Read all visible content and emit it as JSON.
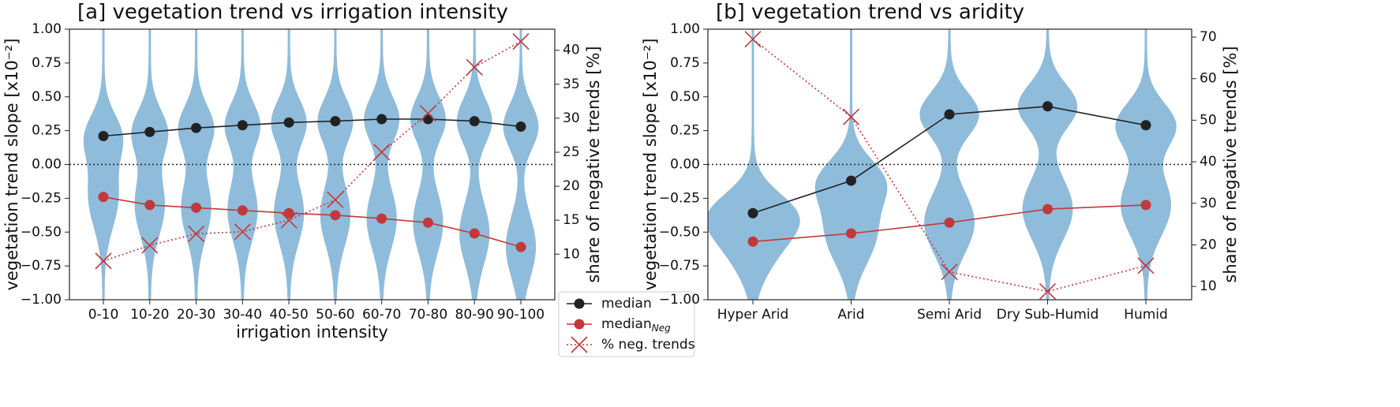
{
  "chart_data": [
    {
      "type": "violin",
      "title": "[a] vegetation trend vs irrigation intensity",
      "xlabel": "irrigation intensity",
      "ylabel": "vegetation trend slope [x10⁻²]",
      "y2label": "share of negative trends [%]",
      "categories": [
        "0-10",
        "10-20",
        "20-30",
        "30-40",
        "40-50",
        "50-60",
        "60-70",
        "70-80",
        "80-90",
        "90-100"
      ],
      "violin_color": "#8fbcdb",
      "ylim": [
        -1,
        1
      ],
      "yticks": [
        {
          "value": -1,
          "label": "−1.00"
        },
        {
          "value": -0.75,
          "label": "−0.75"
        },
        {
          "value": -0.5,
          "label": "−0.50"
        },
        {
          "value": -0.25,
          "label": "−0.25"
        },
        {
          "value": 0,
          "label": "0.00"
        },
        {
          "value": 0.25,
          "label": "0.25"
        },
        {
          "value": 0.5,
          "label": "0.50"
        },
        {
          "value": 0.75,
          "label": "0.75"
        },
        {
          "value": 1,
          "label": "1.00"
        }
      ],
      "y2lim": [
        3.3,
        43.1
      ],
      "y2ticks": [
        10,
        15,
        20,
        25,
        30,
        35,
        40
      ],
      "legend": "outside-lower-right",
      "series": [
        {
          "name": "median",
          "color": "#222222",
          "marker": "circle",
          "line": "solid",
          "values": [
            0.21,
            0.24,
            0.27,
            0.29,
            0.31,
            0.32,
            0.335,
            0.335,
            0.32,
            0.28
          ]
        },
        {
          "name": "median",
          "name_subscript": "Neg",
          "color": "#c0393b",
          "marker": "circle",
          "line": "solid",
          "values": [
            -0.24,
            -0.3,
            -0.32,
            -0.34,
            -0.36,
            -0.375,
            -0.4,
            -0.43,
            -0.51,
            -0.61
          ]
        },
        {
          "name": "% neg. trends",
          "color": "#c0393b",
          "marker": "x",
          "line": "dotted",
          "axis": "y2",
          "values": [
            9,
            11.3,
            13,
            13.3,
            15,
            18,
            25,
            30.7,
            37.5,
            41.3
          ]
        }
      ]
    },
    {
      "type": "violin",
      "title": "[b] vegetation trend vs aridity",
      "ylabel": "vegetation trend slope [x10⁻²]",
      "y2label": "share of negative trends [%]",
      "categories": [
        "Hyper Arid",
        "Arid",
        "Semi Arid",
        "Dry Sub-Humid",
        "Humid"
      ],
      "violin_color": "#8fbcdb",
      "ylim": [
        -1,
        1
      ],
      "yticks": [
        {
          "value": -1,
          "label": "−1.00"
        },
        {
          "value": -0.75,
          "label": "−0.75"
        },
        {
          "value": -0.5,
          "label": "−0.50"
        },
        {
          "value": -0.25,
          "label": "−0.25"
        },
        {
          "value": 0,
          "label": "0.00"
        },
        {
          "value": 0.25,
          "label": "0.25"
        },
        {
          "value": 0.5,
          "label": "0.50"
        },
        {
          "value": 0.75,
          "label": "0.75"
        },
        {
          "value": 1,
          "label": "1.00"
        }
      ],
      "y2lim": [
        6.8,
        71.9
      ],
      "y2ticks": [
        10,
        20,
        30,
        40,
        50,
        60,
        70
      ],
      "series": [
        {
          "color": "#222222",
          "marker": "circle",
          "line": "solid",
          "values": [
            -0.36,
            -0.12,
            0.37,
            0.43,
            0.29
          ]
        },
        {
          "color": "#c0393b",
          "marker": "circle",
          "line": "solid",
          "values": [
            -0.57,
            -0.51,
            -0.43,
            -0.33,
            -0.3
          ]
        },
        {
          "color": "#c0393b",
          "marker": "x",
          "line": "dotted",
          "axis": "y2",
          "values": [
            69.5,
            50.8,
            13.5,
            8.8,
            15
          ]
        }
      ]
    }
  ]
}
